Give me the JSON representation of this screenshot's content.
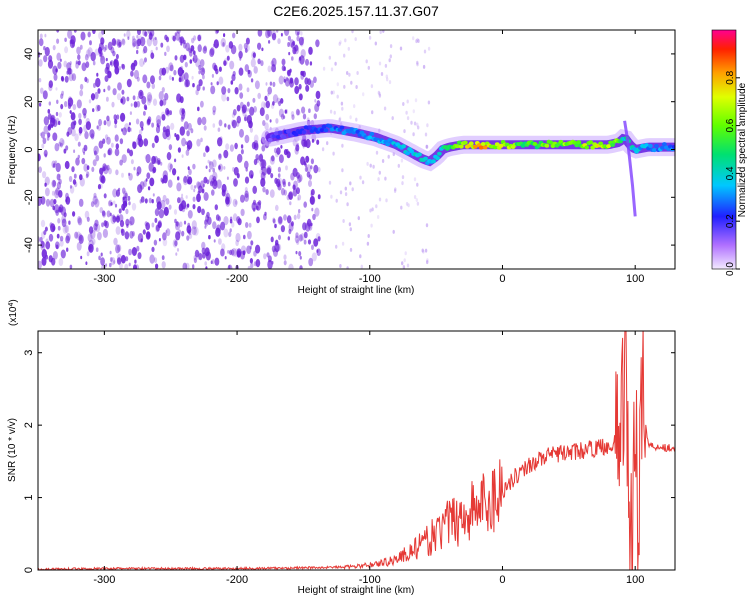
{
  "title": "C2E6.2025.157.11.37.G07",
  "colors": {
    "snr_line": "#e53935",
    "noise_dots": "#6a1fd8",
    "axis": "#000000"
  },
  "chart_data": [
    {
      "type": "heatmap",
      "name": "spectrogram",
      "xlabel": "Height of straight line (km)",
      "ylabel": "Frequency (Hz)",
      "xlim": [
        -350,
        130
      ],
      "ylim": [
        -50,
        50
      ],
      "x_ticks": [
        -300,
        -200,
        -100,
        0,
        100
      ],
      "y_ticks": [
        40,
        20,
        0,
        -20,
        -40
      ],
      "noise_region_x": [
        -350,
        -138
      ],
      "signal_track": {
        "x": [
          -175,
          -150,
          -130,
          -110,
          -95,
          -80,
          -70,
          -60,
          -55,
          -50,
          -45,
          -40,
          -30,
          -20,
          -10,
          0,
          20,
          40,
          60,
          80,
          88,
          92,
          96,
          100,
          110,
          130
        ],
        "freq": [
          5,
          8,
          9,
          7,
          5,
          2,
          -1,
          -4,
          -5,
          -3,
          0,
          1,
          2,
          2,
          2,
          2,
          2,
          2,
          2,
          2,
          3,
          5,
          2,
          0,
          1,
          1
        ],
        "amplitude": [
          0.18,
          0.25,
          0.3,
          0.32,
          0.35,
          0.38,
          0.4,
          0.42,
          0.35,
          0.4,
          0.5,
          0.6,
          0.75,
          0.85,
          0.8,
          0.7,
          0.6,
          0.65,
          0.7,
          0.75,
          0.6,
          0.45,
          0.5,
          0.4,
          0.35,
          0.3
        ]
      },
      "colorbar": {
        "label": "Normalized spectral amplitude",
        "range": [
          0,
          1
        ],
        "ticks": [
          0.0,
          0.2,
          0.4,
          0.6,
          0.8
        ]
      }
    },
    {
      "type": "line",
      "name": "snr",
      "xlabel": "Height of straight line (km)",
      "ylabel": "SNR (10 * v/v)",
      "y_multiplier": "(x10",
      "y_multiplier_exp": "4",
      "y_multiplier_close": ")",
      "xlim": [
        -350,
        130
      ],
      "ylim": [
        0,
        3.3
      ],
      "x_ticks": [
        -300,
        -200,
        -100,
        0,
        100
      ],
      "y_ticks": [
        0,
        1,
        2,
        3
      ],
      "x": [
        -350,
        -300,
        -200,
        -150,
        -120,
        -110,
        -100,
        -90,
        -80,
        -70,
        -60,
        -50,
        -40,
        -30,
        -20,
        -10,
        0,
        10,
        20,
        30,
        40,
        50,
        60,
        70,
        80,
        85,
        90,
        93,
        96,
        98,
        100,
        102,
        105,
        110,
        120,
        130
      ],
      "y": [
        0.01,
        0.02,
        0.02,
        0.03,
        0.04,
        0.05,
        0.07,
        0.1,
        0.15,
        0.25,
        0.35,
        0.5,
        0.65,
        0.75,
        0.85,
        0.95,
        1.1,
        1.3,
        1.45,
        1.55,
        1.6,
        1.62,
        1.65,
        1.68,
        1.72,
        1.75,
        2.0,
        3.3,
        0.2,
        0.1,
        2.8,
        0.8,
        2.5,
        1.72,
        1.7,
        1.68
      ]
    }
  ]
}
